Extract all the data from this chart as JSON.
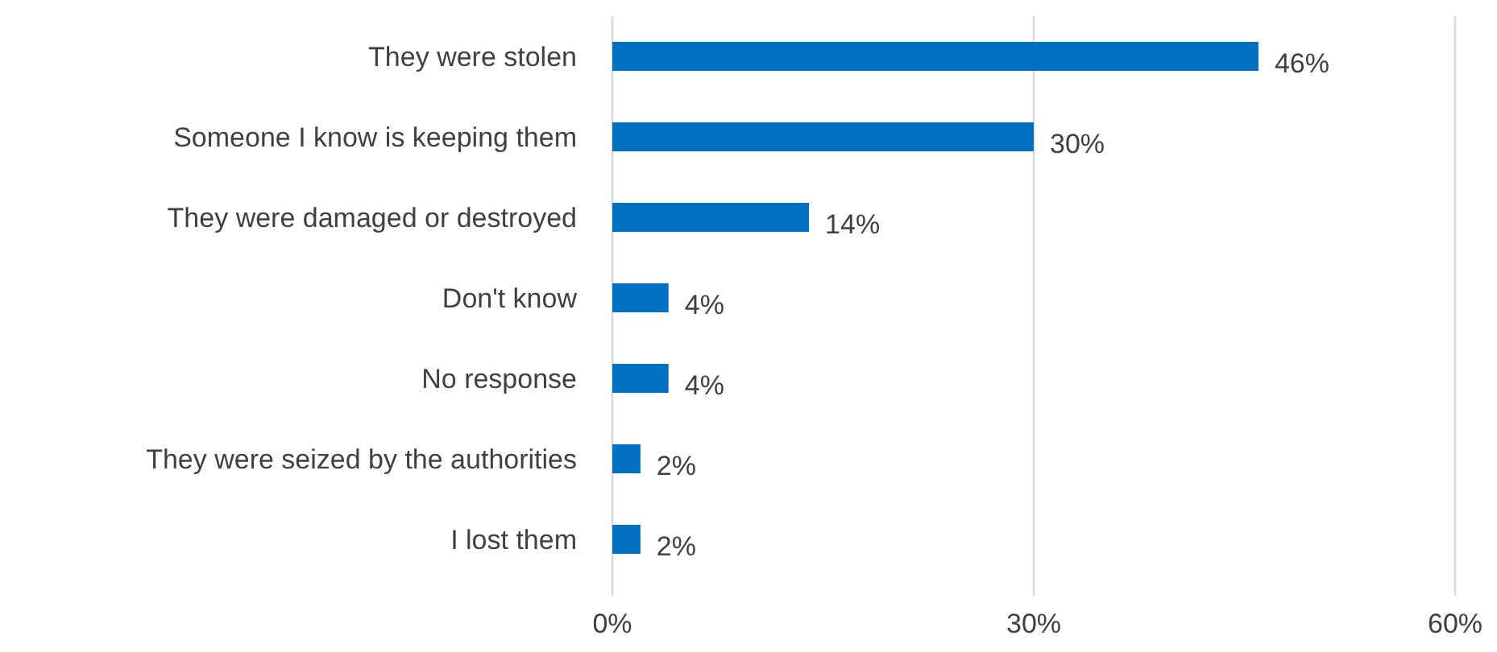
{
  "chart_data": {
    "type": "bar",
    "orientation": "horizontal",
    "categories": [
      "They were stolen",
      "Someone I know is keeping them",
      "They were damaged or destroyed",
      "Don't know",
      "No response",
      "They were seized by the authorities",
      "I lost them"
    ],
    "values": [
      46,
      30,
      14,
      4,
      4,
      2,
      2
    ],
    "value_labels": [
      "46%",
      "30%",
      "14%",
      "4%",
      "4%",
      "2%",
      "2%"
    ],
    "color": "#0070c0",
    "xlim": [
      0,
      60
    ],
    "xticks": [
      {
        "value": 0,
        "label": "0%"
      },
      {
        "value": 30,
        "label": "30%"
      },
      {
        "value": 60,
        "label": "60%"
      }
    ],
    "grid": "x"
  }
}
